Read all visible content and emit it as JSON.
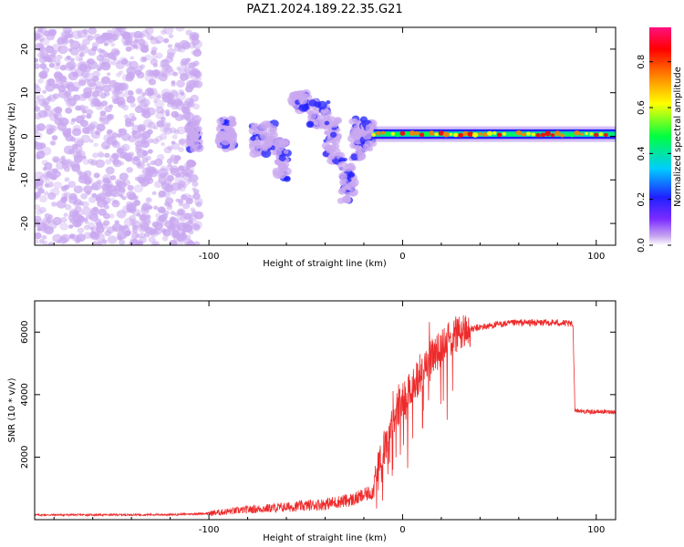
{
  "title": "PAZ1.2024.189.22.35.G21",
  "chart_data": [
    {
      "type": "heatmap",
      "title": "PAZ1.2024.189.22.35.G21",
      "xlabel": "Height of straight line (km)",
      "ylabel": "Frequency (Hz)",
      "xlim": [
        -190,
        110
      ],
      "ylim": [
        -25,
        25
      ],
      "x_ticks": [
        "-100",
        "0",
        "100"
      ],
      "y_ticks": [
        "20",
        "10",
        "0",
        "-10",
        "-20"
      ],
      "y_tick_values": [
        20,
        10,
        0,
        -10,
        -20
      ],
      "x_tick_values": [
        -100,
        0,
        100
      ],
      "colorbar": {
        "label": "Normalized spectral amplitude",
        "range": [
          0,
          0.95
        ],
        "ticks": [
          "0.0",
          "0.2",
          "0.4",
          "0.6",
          "0.8"
        ],
        "tick_values": [
          0.0,
          0.2,
          0.4,
          0.6,
          0.8
        ],
        "colormap": [
          "#ffffff",
          "#c9a8f0",
          "#7b2cff",
          "#2020ff",
          "#00ccff",
          "#00ff40",
          "#ffff00",
          "#ff8000",
          "#ff0000",
          "#ff1080"
        ]
      },
      "features": {
        "noise_region_x": [
          -190,
          -105
        ],
        "scatter_cluster_x": [
          -110,
          -15
        ],
        "tone_line_x": [
          -15,
          110
        ],
        "tone_line_frequency": 0.5
      }
    },
    {
      "type": "line",
      "xlabel": "Height of straight line (km)",
      "ylabel": "SNR (10 * v/v)",
      "xlim": [
        -190,
        110
      ],
      "ylim": [
        0,
        7000
      ],
      "x_ticks": [
        "-100",
        "0",
        "100"
      ],
      "x_tick_values": [
        -100,
        0,
        100
      ],
      "y_ticks": [
        "6000",
        "4000",
        "2000"
      ],
      "y_tick_values": [
        6000,
        4000,
        2000
      ],
      "series_color": "#ee2b2b",
      "trend": {
        "x": [
          -190,
          -120,
          -100,
          -80,
          -60,
          -40,
          -25,
          -15,
          -10,
          -5,
          0,
          5,
          10,
          15,
          20,
          25,
          30,
          40,
          50,
          60,
          70,
          80,
          88,
          89,
          95,
          110
        ],
        "y": [
          150,
          160,
          200,
          320,
          400,
          500,
          650,
          900,
          2200,
          3300,
          3800,
          4300,
          4700,
          5200,
          5500,
          5800,
          6000,
          6150,
          6250,
          6300,
          6300,
          6300,
          6250,
          3500,
          3450,
          3450
        ]
      }
    }
  ],
  "colors": {
    "accent": "#ee2b2b"
  }
}
